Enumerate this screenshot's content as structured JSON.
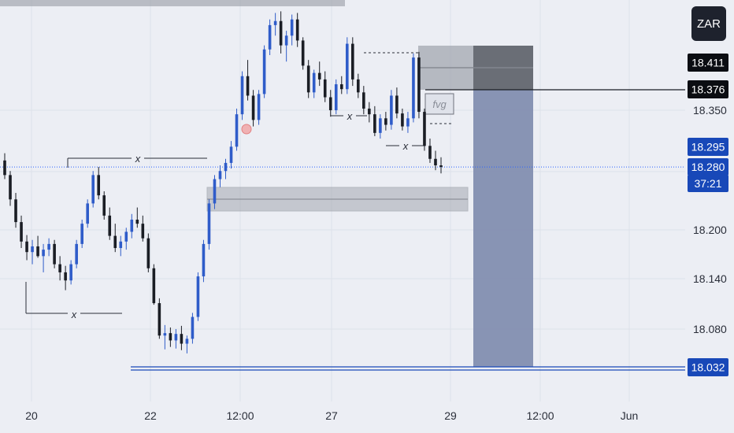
{
  "symbol": {
    "currency": "ZAR"
  },
  "colors": {
    "background": "#eceef4",
    "grid": "#dde1ea",
    "up_candle": "#2f5cc9",
    "down_candle": "#1a1d24",
    "price_line": "#2962ff",
    "zone": "#9ea2ab",
    "target_zone": "#7d89ad",
    "stop_zone": "#5d6068",
    "dark_tag": "#0b0d12",
    "blue_tag": "#1848b8"
  },
  "chart_data": {
    "type": "candlestick",
    "x_ticks": [
      "20",
      "22",
      "12:00",
      "27",
      "29",
      "12:00",
      "Jun"
    ],
    "y_ticks": [
      "18.350",
      "18.200",
      "18.140",
      "18.080"
    ],
    "y_range": [
      18.0,
      18.46
    ],
    "price_tags": [
      {
        "label": "18.411",
        "value": 18.411,
        "style": "dark"
      },
      {
        "label": "18.376",
        "value": 18.376,
        "style": "dark"
      },
      {
        "label": "18.295",
        "value": 18.295,
        "style": "blue"
      },
      {
        "label": "18.280",
        "value": 18.28,
        "style": "blue"
      },
      {
        "label": "37:21",
        "value": 18.258,
        "style": "blue"
      },
      {
        "label": "18.032",
        "value": 18.032,
        "style": "blue"
      }
    ],
    "annotations": [
      {
        "label": "x",
        "kind": "liquidity-sweep"
      },
      {
        "label": "x",
        "kind": "liquidity-sweep"
      },
      {
        "label": "x",
        "kind": "liquidity-sweep"
      },
      {
        "label": "x",
        "kind": "liquidity-sweep"
      },
      {
        "label": "fvg",
        "kind": "fair-value-gap"
      }
    ],
    "ohlc": [
      [
        18.288,
        18.297,
        18.265,
        18.27
      ],
      [
        18.27,
        18.275,
        18.232,
        18.24
      ],
      [
        18.24,
        18.248,
        18.205,
        18.212
      ],
      [
        18.212,
        18.22,
        18.18,
        18.188
      ],
      [
        18.188,
        18.196,
        18.165,
        18.175
      ],
      [
        18.175,
        18.19,
        18.16,
        18.182
      ],
      [
        18.182,
        18.195,
        18.168,
        18.17
      ],
      [
        18.17,
        18.185,
        18.15,
        18.178
      ],
      [
        18.178,
        18.192,
        18.17,
        18.185
      ],
      [
        18.185,
        18.19,
        18.155,
        18.16
      ],
      [
        18.16,
        18.17,
        18.14,
        18.15
      ],
      [
        18.15,
        18.158,
        18.128,
        18.14
      ],
      [
        18.14,
        18.165,
        18.135,
        18.16
      ],
      [
        18.16,
        18.19,
        18.155,
        18.185
      ],
      [
        18.185,
        18.215,
        18.18,
        18.21
      ],
      [
        18.21,
        18.24,
        18.205,
        18.235
      ],
      [
        18.235,
        18.275,
        18.23,
        18.27
      ],
      [
        18.27,
        18.28,
        18.24,
        18.245
      ],
      [
        18.245,
        18.25,
        18.215,
        18.22
      ],
      [
        18.22,
        18.23,
        18.19,
        18.195
      ],
      [
        18.195,
        18.21,
        18.175,
        18.18
      ],
      [
        18.18,
        18.195,
        18.17,
        18.188
      ],
      [
        18.188,
        18.205,
        18.178,
        18.2
      ],
      [
        18.2,
        18.222,
        18.192,
        18.215
      ],
      [
        18.215,
        18.23,
        18.205,
        18.21
      ],
      [
        18.21,
        18.22,
        18.188,
        18.192
      ],
      [
        18.192,
        18.198,
        18.15,
        18.155
      ],
      [
        18.155,
        18.16,
        18.11,
        18.112
      ],
      [
        18.112,
        18.118,
        18.068,
        18.072
      ],
      [
        18.072,
        18.085,
        18.055,
        18.075
      ],
      [
        18.075,
        18.082,
        18.058,
        18.066
      ],
      [
        18.066,
        18.08,
        18.056,
        18.074
      ],
      [
        18.074,
        18.084,
        18.054,
        18.062
      ],
      [
        18.062,
        18.072,
        18.05,
        18.068
      ],
      [
        18.068,
        18.1,
        18.062,
        18.095
      ],
      [
        18.095,
        18.15,
        18.09,
        18.145
      ],
      [
        18.145,
        18.19,
        18.138,
        18.185
      ],
      [
        18.185,
        18.24,
        18.178,
        18.235
      ],
      [
        18.235,
        18.27,
        18.228,
        18.265
      ],
      [
        18.265,
        18.282,
        18.255,
        18.275
      ],
      [
        18.275,
        18.29,
        18.265,
        18.285
      ],
      [
        18.285,
        18.312,
        18.278,
        18.305
      ],
      [
        18.305,
        18.352,
        18.3,
        18.345
      ],
      [
        18.345,
        18.398,
        18.338,
        18.392
      ],
      [
        18.392,
        18.412,
        18.362,
        18.368
      ],
      [
        18.368,
        18.375,
        18.33,
        18.338
      ],
      [
        18.338,
        18.375,
        18.332,
        18.37
      ],
      [
        18.37,
        18.43,
        18.365,
        18.425
      ],
      [
        18.425,
        18.462,
        18.418,
        18.455
      ],
      [
        18.455,
        18.47,
        18.442,
        18.46
      ],
      [
        18.46,
        18.472,
        18.42,
        18.43
      ],
      [
        18.43,
        18.448,
        18.41,
        18.442
      ],
      [
        18.442,
        18.468,
        18.43,
        18.462
      ],
      [
        18.462,
        18.47,
        18.428,
        18.436
      ],
      [
        18.436,
        18.44,
        18.4,
        18.405
      ],
      [
        18.405,
        18.412,
        18.365,
        18.372
      ],
      [
        18.372,
        18.4,
        18.365,
        18.396
      ],
      [
        18.396,
        18.41,
        18.38,
        18.388
      ],
      [
        18.388,
        18.398,
        18.36,
        18.366
      ],
      [
        18.366,
        18.375,
        18.342,
        18.35
      ],
      [
        18.35,
        18.388,
        18.345,
        18.382
      ],
      [
        18.382,
        18.392,
        18.37,
        18.376
      ],
      [
        18.376,
        18.44,
        18.37,
        18.432
      ],
      [
        18.432,
        18.44,
        18.38,
        18.388
      ],
      [
        18.388,
        18.395,
        18.365,
        18.372
      ],
      [
        18.372,
        18.38,
        18.345,
        18.352
      ],
      [
        18.352,
        18.36,
        18.335,
        18.345
      ],
      [
        18.345,
        18.355,
        18.318,
        18.322
      ],
      [
        18.322,
        18.345,
        18.315,
        18.34
      ],
      [
        18.34,
        18.348,
        18.325,
        18.332
      ],
      [
        18.332,
        18.375,
        18.326,
        18.368
      ],
      [
        18.368,
        18.378,
        18.34,
        18.346
      ],
      [
        18.346,
        18.352,
        18.325,
        18.33
      ],
      [
        18.33,
        18.348,
        18.322,
        18.34
      ],
      [
        18.34,
        18.42,
        18.335,
        18.415
      ],
      [
        18.415,
        18.422,
        18.34,
        18.348
      ],
      [
        18.348,
        18.352,
        18.3,
        18.306
      ],
      [
        18.306,
        18.315,
        18.285,
        18.29
      ],
      [
        18.29,
        18.3,
        18.276,
        18.282
      ],
      [
        18.282,
        18.292,
        18.272,
        18.28
      ]
    ]
  }
}
